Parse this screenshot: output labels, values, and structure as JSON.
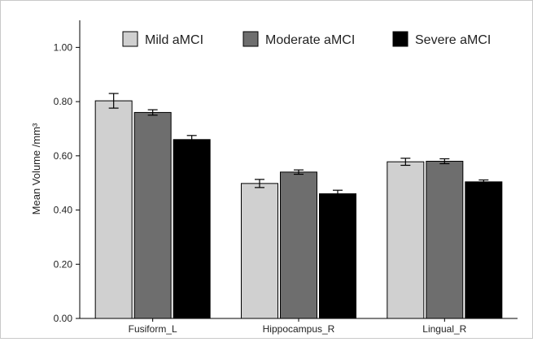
{
  "chart_data": {
    "type": "bar",
    "title": "",
    "xlabel": "",
    "ylabel": "Mean Volume /mm³",
    "ylim": [
      0,
      1.1
    ],
    "yticks": [
      "0.00",
      "0.20",
      "0.40",
      "0.60",
      "0.80",
      "1.00"
    ],
    "categories": [
      "Fusiform_L",
      "Hippocampus_R",
      "Lingual_R"
    ],
    "series": [
      {
        "name": "Mild aMCI",
        "color": "#d0d0d0",
        "values": [
          0.803,
          0.498,
          0.578
        ],
        "errors": [
          0.027,
          0.015,
          0.013
        ]
      },
      {
        "name": "Moderate aMCI",
        "color": "#6e6e6e",
        "values": [
          0.76,
          0.54,
          0.58
        ],
        "errors": [
          0.01,
          0.008,
          0.009
        ]
      },
      {
        "name": "Severe aMCI",
        "color": "#000000",
        "values": [
          0.66,
          0.46,
          0.504
        ],
        "errors": [
          0.015,
          0.013,
          0.007
        ]
      }
    ],
    "legend": "top"
  }
}
